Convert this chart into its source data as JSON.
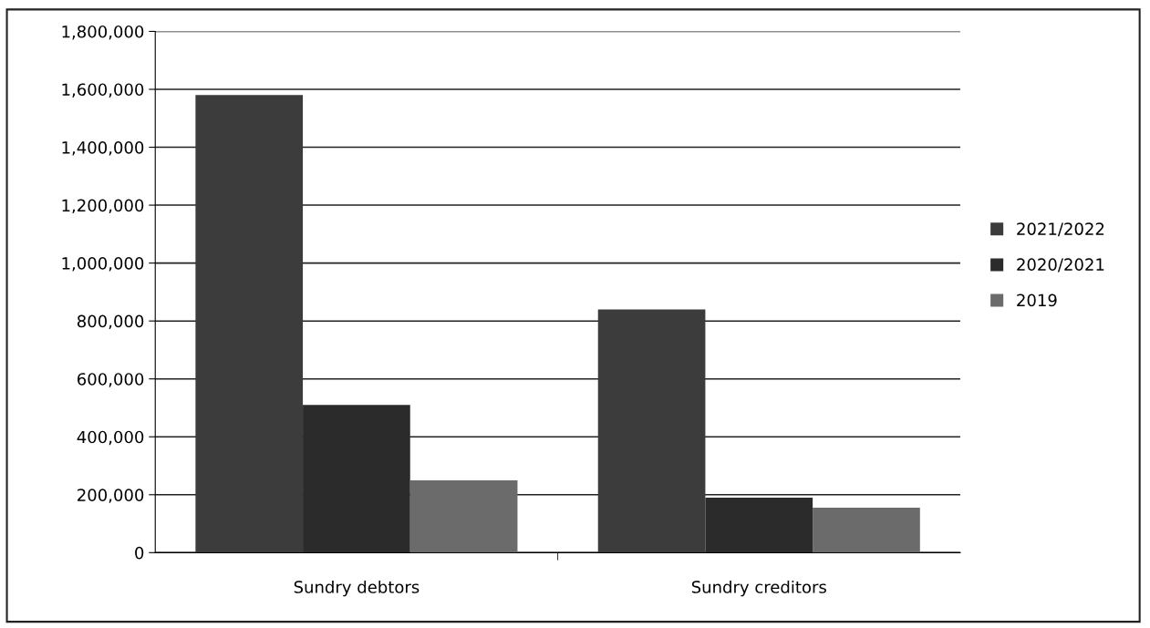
{
  "chart_data": {
    "type": "bar",
    "categories": [
      "Sundry debtors",
      "Sundry creditors"
    ],
    "series": [
      {
        "name": "2021/2022",
        "color": "#3c3c3c",
        "values": [
          1580000,
          840000
        ]
      },
      {
        "name": "2020/2021",
        "color": "#2b2b2b",
        "values": [
          510000,
          190000
        ]
      },
      {
        "name": "2019",
        "color": "#6b6b6b",
        "values": [
          250000,
          155000
        ]
      }
    ],
    "ylim": [
      0,
      1800000
    ],
    "yticks": [
      {
        "value": 0,
        "label": "0"
      },
      {
        "value": 200000,
        "label": "200,000"
      },
      {
        "value": 400000,
        "label": "400,000"
      },
      {
        "value": 600000,
        "label": "600,000"
      },
      {
        "value": 800000,
        "label": "800,000"
      },
      {
        "value": 1000000,
        "label": "1,000,000"
      },
      {
        "value": 1200000,
        "label": "1,200,000"
      },
      {
        "value": 1400000,
        "label": "1,400,000"
      },
      {
        "value": 1600000,
        "label": "1,600,000"
      },
      {
        "value": 1800000,
        "label": "1,800,000"
      }
    ],
    "grid": "y",
    "legend": "right"
  }
}
